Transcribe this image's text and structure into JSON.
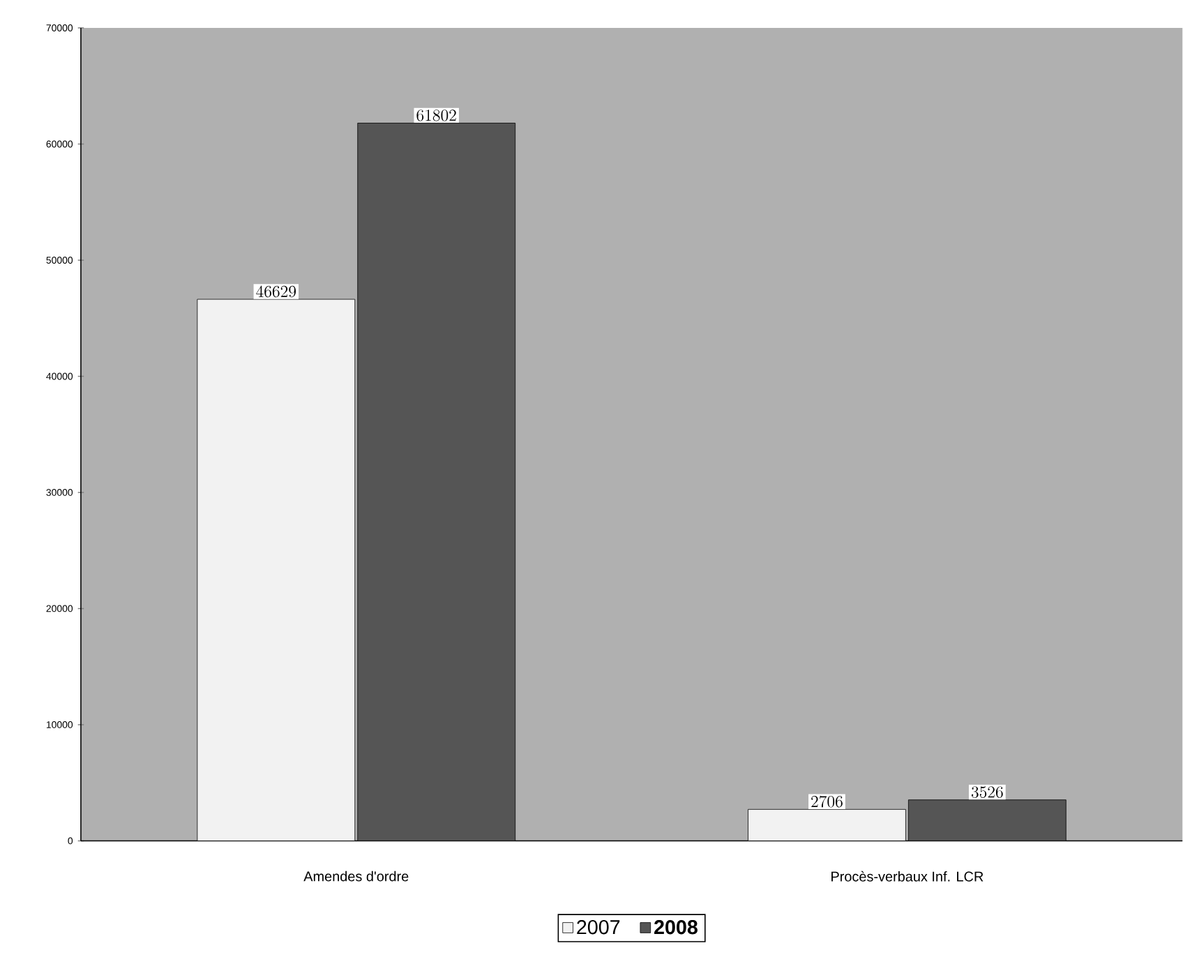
{
  "chart_data": {
    "type": "bar",
    "categories": [
      "Amendes d'ordre",
      "Procès-verbaux Inf. LCR"
    ],
    "series": [
      {
        "name": "2007",
        "color": "#f2f2f2",
        "values": [
          46629,
          2706
        ]
      },
      {
        "name": "2008",
        "color": "#555555",
        "values": [
          61802,
          3526
        ]
      }
    ],
    "ylim": [
      0,
      70000
    ],
    "yticks": [
      0,
      10000,
      20000,
      30000,
      40000,
      50000,
      60000,
      70000
    ],
    "grid": false,
    "legend": "bottom",
    "data_labels": true
  }
}
